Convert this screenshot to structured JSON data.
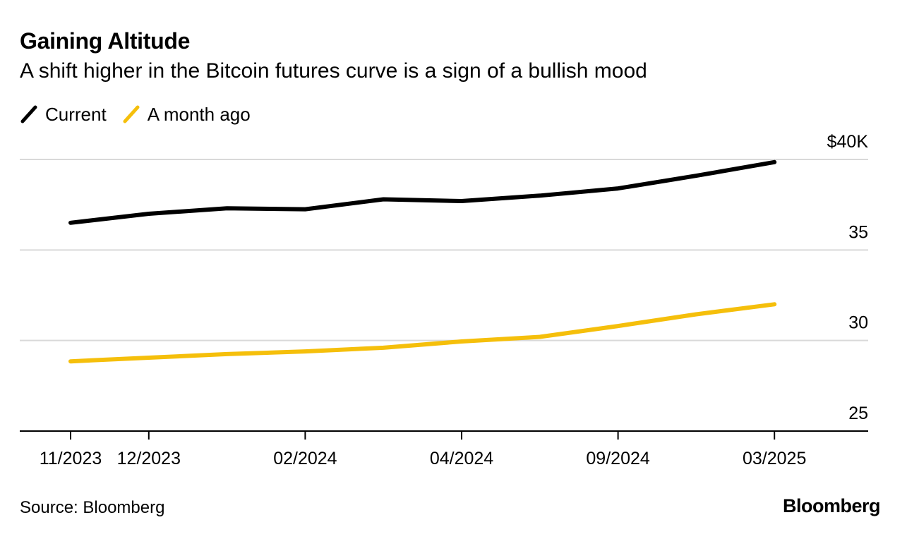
{
  "header": {
    "title": "Gaining Altitude",
    "subtitle": "A shift higher in the Bitcoin futures curve is a sign of a bullish mood"
  },
  "footer": {
    "source": "Source: Bloomberg",
    "brand": "Bloomberg"
  },
  "colors": {
    "current": "#000000",
    "month_ago": "#f5bf0b",
    "grid": "#d9d9d9",
    "axis": "#000000"
  },
  "chart_data": {
    "type": "line",
    "title": "Gaining Altitude",
    "subtitle": "A shift higher in the Bitcoin futures curve is a sign of a bullish mood",
    "xlabel": "",
    "ylabel": "",
    "legend_position": "top-left",
    "grid": true,
    "x_tick_labels": [
      "11/2023",
      "12/2023",
      "02/2024",
      "04/2024",
      "09/2024",
      "03/2025"
    ],
    "x_tick_indices": [
      0,
      1,
      3,
      5,
      7,
      9
    ],
    "y_ticks": [
      {
        "value": 25,
        "label": "25"
      },
      {
        "value": 30,
        "label": "30"
      },
      {
        "value": 35,
        "label": "35"
      },
      {
        "value": 40,
        "label": "$40K"
      }
    ],
    "ylim": [
      25,
      40
    ],
    "series": [
      {
        "name": "Current",
        "color": "#000000",
        "values": [
          36.5,
          37.0,
          37.3,
          37.25,
          37.8,
          37.7,
          38.0,
          38.4,
          39.1,
          39.85
        ]
      },
      {
        "name": "A month ago",
        "color": "#f5bf0b",
        "values": [
          28.85,
          29.05,
          29.25,
          29.4,
          29.6,
          29.95,
          30.2,
          30.8,
          31.45,
          32.0
        ]
      }
    ]
  }
}
